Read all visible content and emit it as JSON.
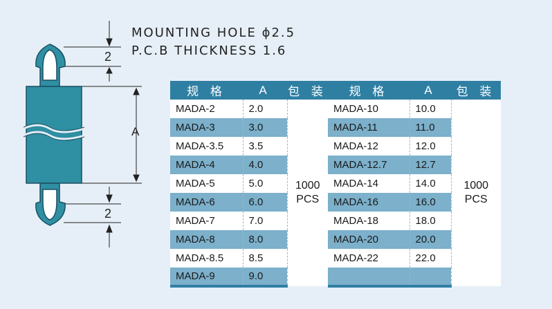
{
  "specs": {
    "line1": "MOUNTING HOLE ϕ2.5",
    "line2": "P.C.B THICKNESS 1.6"
  },
  "drawing": {
    "dim_top": "2",
    "dim_mid": "A",
    "dim_bottom": "2"
  },
  "colors": {
    "header": "#2f7fa3",
    "row_dark": "#7cb0cb",
    "part_fill": "#2f8fa3",
    "background": "#e6eff7"
  },
  "table_left": {
    "headers": [
      "规 格",
      "A",
      "包 装"
    ],
    "rows": [
      {
        "model": "MADA-2",
        "a": "2.0"
      },
      {
        "model": "MADA-3",
        "a": "3.0"
      },
      {
        "model": "MADA-3.5",
        "a": "3.5"
      },
      {
        "model": "MADA-4",
        "a": "4.0"
      },
      {
        "model": "MADA-5",
        "a": "5.0"
      },
      {
        "model": "MADA-6",
        "a": "6.0"
      },
      {
        "model": "MADA-7",
        "a": "7.0"
      },
      {
        "model": "MADA-8",
        "a": "8.0"
      },
      {
        "model": "MADA-8.5",
        "a": "8.5"
      },
      {
        "model": "MADA-9",
        "a": "9.0"
      }
    ],
    "packing": {
      "qty": "1000",
      "unit": "PCS"
    }
  },
  "table_right": {
    "headers": [
      "规 格",
      "A",
      "包 装"
    ],
    "rows": [
      {
        "model": "MADA-10",
        "a": "10.0"
      },
      {
        "model": "MADA-11",
        "a": "11.0"
      },
      {
        "model": "MADA-12",
        "a": "12.0"
      },
      {
        "model": "MADA-12.7",
        "a": "12.7"
      },
      {
        "model": "MADA-14",
        "a": "14.0"
      },
      {
        "model": "MADA-16",
        "a": "16.0"
      },
      {
        "model": "MADA-18",
        "a": "18.0"
      },
      {
        "model": "MADA-20",
        "a": "20.0"
      },
      {
        "model": "MADA-22",
        "a": "22.0"
      },
      {
        "model": "",
        "a": ""
      }
    ],
    "packing": {
      "qty": "1000",
      "unit": "PCS"
    }
  }
}
